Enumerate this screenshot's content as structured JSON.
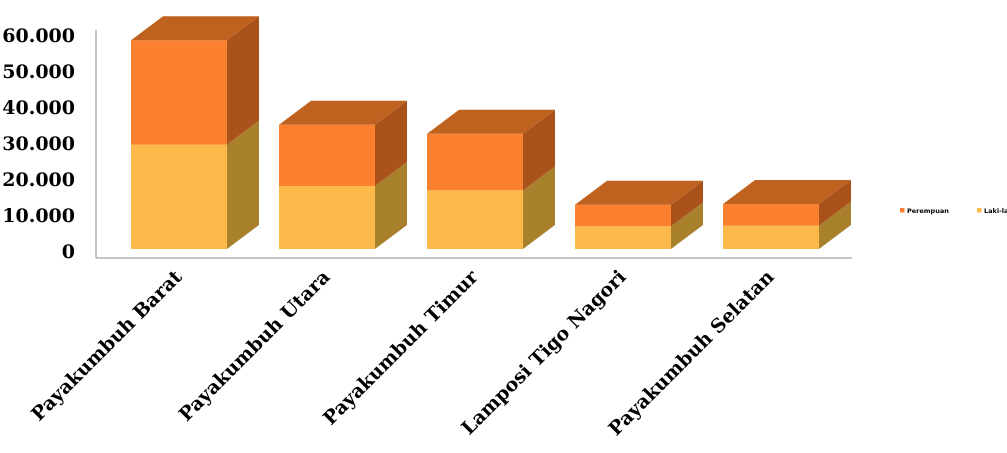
{
  "chart_data": {
    "type": "bar",
    "stacked": true,
    "three_d": true,
    "title": "",
    "xlabel": "",
    "ylabel": "",
    "categories": [
      "Payakumbuh Barat",
      "Payakumbuh Utara",
      "Payakumbuh Timur",
      "Lamposi Tigo Nagori",
      "Payakumbuh Selatan"
    ],
    "series": [
      {
        "name": "Laki-laki",
        "values": [
          29000,
          17500,
          16300,
          6300,
          6500
        ],
        "color": "#FDB94A",
        "side_color": "#A9802C"
      },
      {
        "name": "Perempuan",
        "values": [
          29000,
          17000,
          15700,
          6000,
          6000
        ],
        "color": "#FB8130",
        "side_color": "#A9521B",
        "top_color": "#C0621F"
      }
    ],
    "ylim": [
      0,
      60000
    ],
    "yticks": [
      "0",
      "10.000",
      "20.000",
      "30.000",
      "40.000",
      "50.000",
      "60.000"
    ],
    "ytick_values": [
      0,
      10000,
      20000,
      30000,
      40000,
      50000,
      60000
    ],
    "grid": false,
    "legend_position": "right"
  }
}
